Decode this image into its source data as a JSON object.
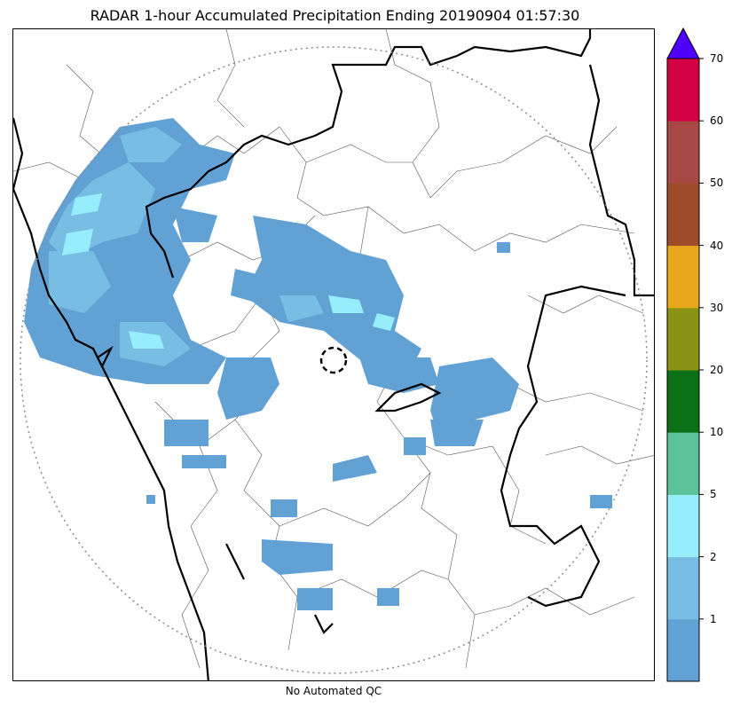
{
  "title": "RADAR 1-hour Accumulated Precipitation Ending 20190904 01:57:30",
  "footer": "No Automated QC",
  "colorbar": {
    "tick_labels": [
      "1",
      "2",
      "5",
      "10",
      "20",
      "30",
      "40",
      "50",
      "60",
      "70"
    ],
    "colors": [
      "#62a1d4",
      "#78bde3",
      "#96eefc",
      "#5cc29a",
      "#0c7016",
      "#8a9414",
      "#e8a81c",
      "#9c4c28",
      "#a64844",
      "#d40044"
    ],
    "extend_color": "#5000ff"
  },
  "map": {
    "range_ring_color": "#8a8a8a",
    "echo_color_light": "#62a1d4",
    "echo_color_medium": "#78bde3",
    "echo_color_heavy": "#96eefc"
  }
}
